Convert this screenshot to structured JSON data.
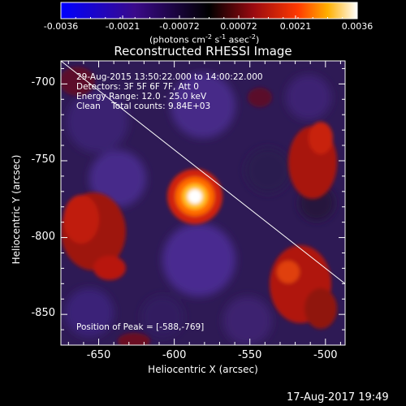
{
  "colorbar": {
    "ticks": [
      "-0.0036",
      "-0.0021",
      "-0.00072",
      "0.00072",
      "0.0021",
      "0.0036"
    ],
    "tick_values": [
      -0.0036,
      -0.0021,
      -0.00072,
      0.00072,
      0.0021,
      0.0036
    ],
    "range": [
      -0.0036,
      0.0036
    ],
    "unit_main": "(photons cm",
    "unit_sup1": "-2",
    "unit_mid": " s",
    "unit_sup2": "-1",
    "unit_mid2": " asec",
    "unit_sup3": "-2",
    "unit_end": ")"
  },
  "title": "Reconstructed RHESSI Image",
  "annotations": {
    "time_range": "29-Aug-2015 13:50:22.000 to 14:00:22.000",
    "detectors": "Detectors: 3F 5F 6F 7F, Att 0",
    "energy": "Energy Range: 12.0 - 25.0 keV",
    "clean": "Clean    Total counts: 9.84E+03",
    "peak": "Position of Peak = [-588,-769]"
  },
  "x_axis": {
    "label": "Heliocentric X (arcsec)",
    "ticks": [
      "-650",
      "-600",
      "-550",
      "-500"
    ],
    "tick_values": [
      -650,
      -600,
      -550,
      -500
    ],
    "range": [
      -675,
      -487
    ]
  },
  "y_axis": {
    "label": "Heliocentric Y (arcsec)",
    "ticks": [
      "-700",
      "-750",
      "-800",
      "-850"
    ],
    "tick_values": [
      -700,
      -750,
      -800,
      -850
    ],
    "range": [
      -870,
      -685
    ]
  },
  "peak_position": [
    -588,
    -769
  ],
  "limb_line": [
    [
      -675,
      -685
    ],
    [
      -487,
      -830
    ]
  ],
  "timestamp": "17-Aug-2017 19:49",
  "colors": {
    "background": "#000000",
    "text": "#ffffff",
    "limb": "#ffffff",
    "negative_min": "#0000ff",
    "zero": "#000000",
    "positive_max": "#ffffff"
  }
}
